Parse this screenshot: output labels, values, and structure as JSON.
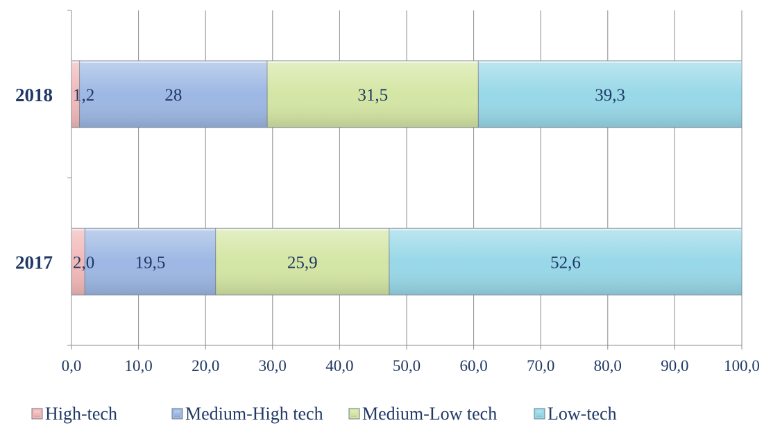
{
  "chart_data": {
    "type": "bar",
    "orientation": "horizontal",
    "stacked": true,
    "categories": [
      "2017",
      "2018"
    ],
    "series": [
      {
        "name": "High-tech",
        "values": [
          2.0,
          1.2
        ],
        "labels": [
          "2,0",
          "1,2"
        ],
        "color": "#f2b8b8"
      },
      {
        "name": "Medium-High tech",
        "values": [
          19.5,
          28
        ],
        "labels": [
          "19,5",
          "28"
        ],
        "color": "#9db8e4"
      },
      {
        "name": "Medium-Low tech",
        "values": [
          25.9,
          31.5
        ],
        "labels": [
          "25,9",
          "31,5"
        ],
        "color": "#d4e6a4"
      },
      {
        "name": "Low-tech",
        "values": [
          52.6,
          39.3
        ],
        "labels": [
          "52,6",
          "39,3"
        ],
        "color": "#98d8e8"
      }
    ],
    "xlim": [
      0,
      100
    ],
    "x_ticks": [
      "0,0",
      "10,0",
      "20,0",
      "30,0",
      "40,0",
      "50,0",
      "60,0",
      "70,0",
      "80,0",
      "90,0",
      "100,0"
    ],
    "grid": true,
    "legend_position": "bottom",
    "title": "",
    "xlabel": "",
    "ylabel": ""
  }
}
